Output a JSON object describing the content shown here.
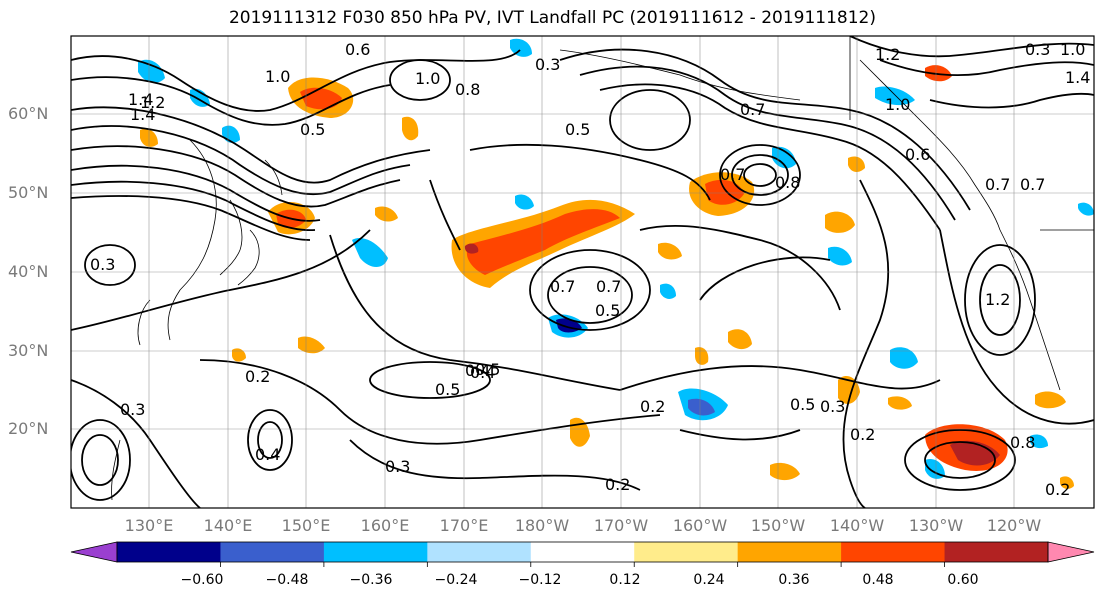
{
  "title": "2019111312 F030 850 hPa PV, IVT Landfall PC (2019111612 - 2019111812)",
  "lat_labels": [
    "60°N",
    "50°N",
    "40°N",
    "30°N",
    "20°N"
  ],
  "lon_labels": [
    "130°E",
    "140°E",
    "150°E",
    "160°E",
    "170°E",
    "180°W",
    "170°W",
    "160°W",
    "150°W",
    "140°W",
    "130°W",
    "120°W"
  ],
  "colorbar": {
    "ticks": [
      "−0.60",
      "−0.48",
      "−0.36",
      "−0.24",
      "−0.12",
      "0.12",
      "0.24",
      "0.36",
      "0.48",
      "0.60"
    ],
    "colors": [
      "#9a3fd0",
      "#00008b",
      "#3a5fcd",
      "#00bfff",
      "#b0e2ff",
      "#ffffff",
      "#ffec8b",
      "#ffa500",
      "#ff4500",
      "#b22222",
      "#ff88b0"
    ]
  },
  "contour_labels": [
    "1.4",
    "0.6",
    "1.0",
    "1.2",
    "1.4",
    "0.5",
    "0.7",
    "0.5",
    "0.7",
    "1.0",
    "0.8",
    "0.5",
    "0.3",
    "0.8",
    "1.0",
    "0.6",
    "0.5",
    "0.7",
    "0.7",
    "0.4",
    "0.5",
    "0.4",
    "0.2",
    "0.5",
    "0.3",
    "0.2",
    "0.3",
    "0.2",
    "0.3",
    "0.4",
    "0.3",
    "1.0",
    "1.2",
    "1.4",
    "0.7",
    "0.7",
    "1.2",
    "0.8",
    "0.2",
    "0.2",
    "0.3"
  ]
}
